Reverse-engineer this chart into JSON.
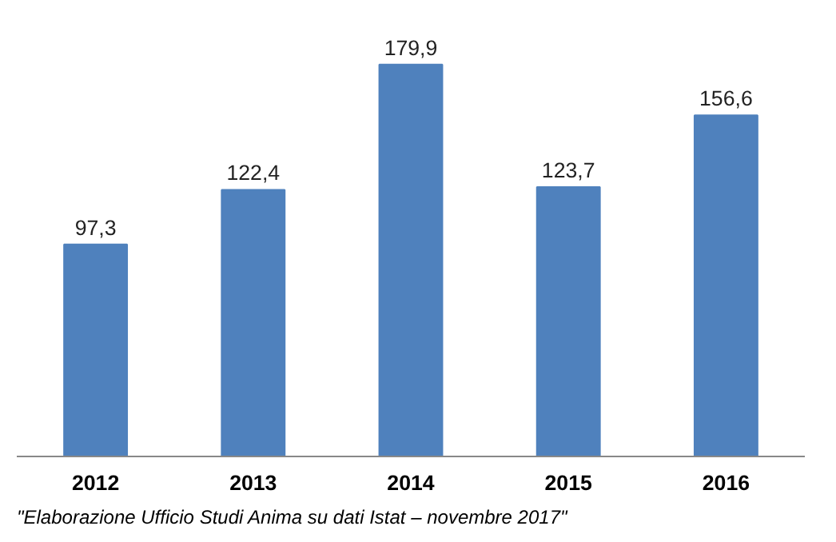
{
  "chart_data": {
    "type": "bar",
    "categories": [
      "2012",
      "2013",
      "2014",
      "2015",
      "2016"
    ],
    "values": [
      97.3,
      122.4,
      179.9,
      123.7,
      156.6
    ],
    "value_labels": [
      "97,3",
      "122,4",
      "179,9",
      "123,7",
      "156,6"
    ],
    "color": "#4f81bd",
    "tick_labels": "x",
    "annotations": [
      "\"Elaborazione Ufficio Studi Anima su dati Istat – novembre 2017\""
    ]
  }
}
